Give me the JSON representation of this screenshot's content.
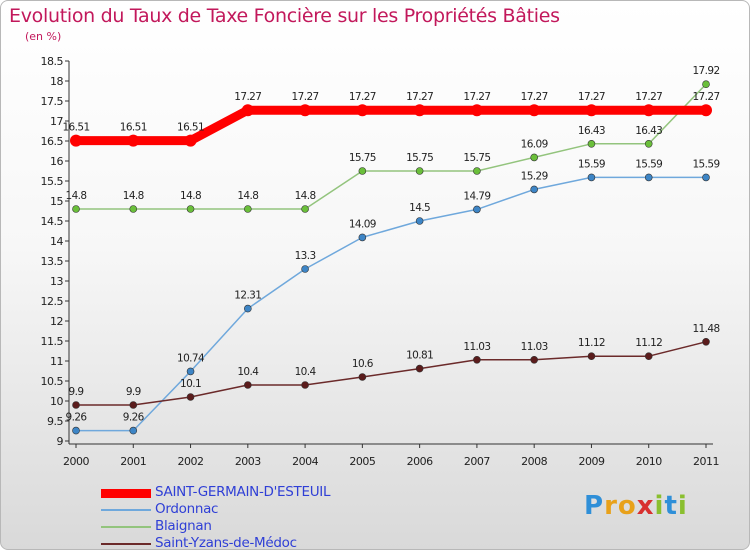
{
  "title": "Evolution du Taux de Taxe Foncière sur les Propriétés Bâties",
  "subtitle": "(en %)",
  "logo": "Proxiti",
  "colors": {
    "title": "#c2185b",
    "axis": "#333333",
    "legend_text": "#2f3fd6"
  },
  "chart_data": {
    "type": "line",
    "title": "Evolution du Taux de Taxe Foncière sur les Propriétés Bâties",
    "ylabel": "(en %)",
    "xlabel": "",
    "x": [
      "2000",
      "2001",
      "2002",
      "2003",
      "2004",
      "2005",
      "2006",
      "2007",
      "2008",
      "2009",
      "2010",
      "2011"
    ],
    "ylim": [
      9,
      18.5
    ],
    "yticks": [
      "9",
      "9.5",
      "10",
      "10.5",
      "11",
      "11.5",
      "12",
      "12.5",
      "13",
      "13.5",
      "14",
      "14.5",
      "15",
      "15.5",
      "16",
      "16.5",
      "17",
      "17.5",
      "18",
      "18.5"
    ],
    "grid": false,
    "legend_position": "bottom-left",
    "series": [
      {
        "name": "SAINT-GERMAIN-D'ESTEUIL",
        "values": [
          16.51,
          16.51,
          16.51,
          17.27,
          17.27,
          17.27,
          17.27,
          17.27,
          17.27,
          17.27,
          17.27,
          17.27
        ],
        "labels": [
          "16.51",
          "16.51",
          "16.51",
          "17.27",
          "17.27",
          "17.27",
          "17.27",
          "17.27",
          "17.27",
          "17.27",
          "17.27",
          "17.27"
        ],
        "color": "#ff0000",
        "marker": "#ff0000",
        "thick": true
      },
      {
        "name": "Ordonnac",
        "values": [
          9.26,
          9.26,
          10.74,
          12.31,
          13.3,
          14.09,
          14.5,
          14.79,
          15.29,
          15.59,
          15.59,
          15.59
        ],
        "labels": [
          "9.26",
          "9.26",
          "10.74",
          "12.31",
          "13.3",
          "14.09",
          "14.5",
          "14.79",
          "15.29",
          "15.59",
          "15.59",
          "15.59"
        ],
        "color": "#6fa8dc",
        "marker": "#3d85c6",
        "thick": false
      },
      {
        "name": "Blaignan",
        "values": [
          14.8,
          14.8,
          14.8,
          14.8,
          14.8,
          15.75,
          15.75,
          15.75,
          16.09,
          16.43,
          16.43,
          17.92
        ],
        "labels": [
          "14.8",
          "14.8",
          "14.8",
          "14.8",
          "14.8",
          "15.75",
          "15.75",
          "15.75",
          "16.09",
          "16.43",
          "16.43",
          "17.92"
        ],
        "color": "#93c47d",
        "marker": "#6abf3a",
        "thick": false
      },
      {
        "name": "Saint-Yzans-de-Médoc",
        "values": [
          9.9,
          9.9,
          10.1,
          10.4,
          10.4,
          10.6,
          10.81,
          11.03,
          11.03,
          11.12,
          11.12,
          11.48
        ],
        "labels": [
          "9.9",
          "9.9",
          "10.1",
          "10.4",
          "10.4",
          "10.6",
          "10.81",
          "11.03",
          "11.03",
          "11.12",
          "11.12",
          "11.48"
        ],
        "color": "#6b2a2a",
        "marker": "#5b1c1c",
        "thick": false
      }
    ]
  }
}
